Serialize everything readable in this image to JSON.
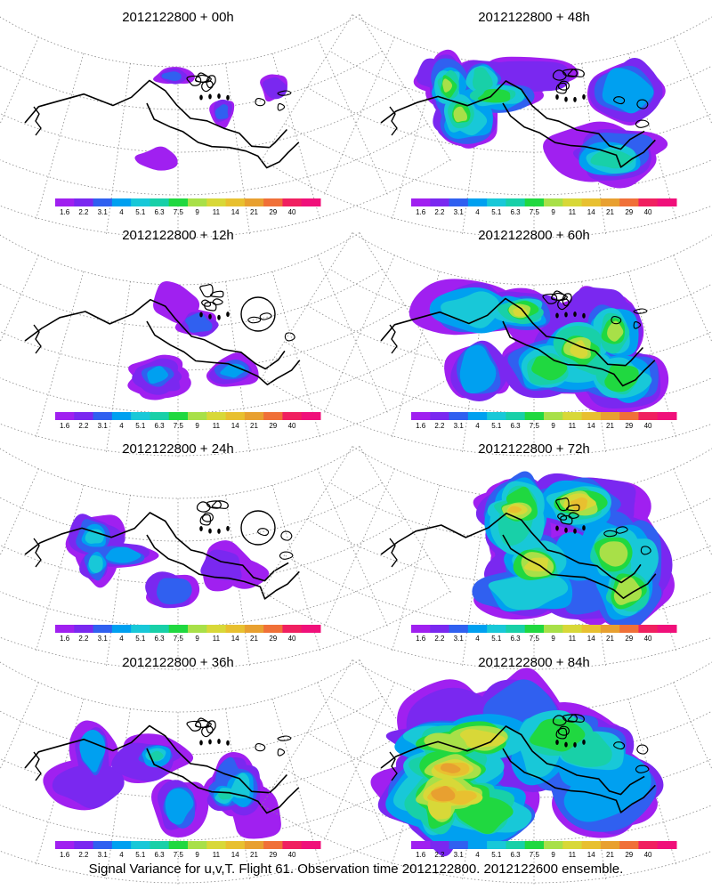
{
  "caption": "Signal Variance for u,v,T. Flight 61. Observation time 2012122800. 2012122600 ensemble.",
  "colorbar": {
    "labels": [
      "1.6",
      "2.2",
      "3.1",
      "4",
      "5.1",
      "6.3",
      "7.5",
      "9",
      "11",
      "14",
      "21",
      "29",
      "40"
    ],
    "colors": [
      "#a020f0",
      "#7a28f0",
      "#3060f0",
      "#00a0f0",
      "#18c8d8",
      "#18d0a8",
      "#20d840",
      "#a8e048",
      "#d8d838",
      "#e8c030",
      "#e8a030",
      "#f07038",
      "#f02060",
      "#f0107a"
    ]
  },
  "panels": [
    {
      "title": "2012122800 + 00h",
      "intensity": 0.1,
      "circle": false
    },
    {
      "title": "2012122800 + 48h",
      "intensity": 0.55,
      "circle": false
    },
    {
      "title": "2012122800 + 12h",
      "intensity": 0.22,
      "circle": true
    },
    {
      "title": "2012122800 + 60h",
      "intensity": 0.68,
      "circle": false
    },
    {
      "title": "2012122800 + 24h",
      "intensity": 0.32,
      "circle": true
    },
    {
      "title": "2012122800 + 72h",
      "intensity": 0.78,
      "circle": false
    },
    {
      "title": "2012122800 + 36h",
      "intensity": 0.44,
      "circle": false
    },
    {
      "title": "2012122800 + 84h",
      "intensity": 0.9,
      "circle": false
    }
  ]
}
